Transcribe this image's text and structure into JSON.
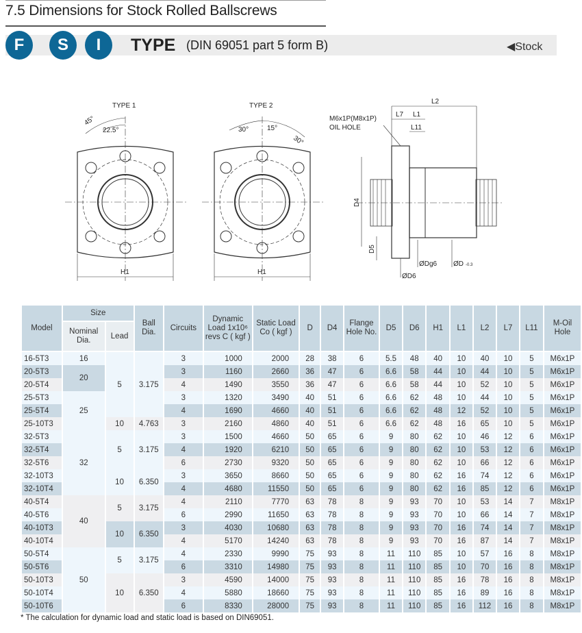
{
  "header": {
    "title": "7.5 Dimensions for Stock Rolled Ballscrews",
    "badges": [
      "F",
      "S",
      "I"
    ],
    "type_label": "TYPE",
    "standard": "(DIN 69051 part 5 form B)",
    "stock_label": "Stock",
    "brand_color": "#0e6796"
  },
  "diagrams": {
    "type1": {
      "label": "TYPE 1",
      "angle_a": "45°",
      "angle_b": "22.5°",
      "h1": "H1"
    },
    "type2": {
      "label": "TYPE 2",
      "angle_a": "30°",
      "angle_b": "15°",
      "angle_c": "30°",
      "h1": "H1"
    },
    "side": {
      "l2": "L2",
      "l7": "L7",
      "l1": "L1",
      "l11": "L11",
      "oil_hole_1": "M6x1P(M8x1P)",
      "oil_hole_2": "OIL HOLE",
      "d4": "D4",
      "d5": "D5",
      "d6": "ØD6",
      "dg6": "ØDg6",
      "d": "ØD",
      "d_tol": "-0.3"
    }
  },
  "table": {
    "headers": {
      "model": "Model",
      "size": "Size",
      "nominal": "Nominal Dia.",
      "lead": "Lead",
      "ball": "Ball Dia.",
      "circuits": "Circuits",
      "dynamic": "Dynamic Load 1x10⁶ revs C ( kgf )",
      "static": "Static Load Co ( kgf )",
      "d": "D",
      "d4": "D4",
      "flange": "Flange Hole No.",
      "d5": "D5",
      "d6": "D6",
      "h1": "H1",
      "l1": "L1",
      "l2": "L2",
      "l7": "L7",
      "l11": "L11",
      "oil": "M-Oil Hole"
    },
    "nominal_groups": [
      {
        "value": "16",
        "rows": 1
      },
      {
        "value": "20",
        "rows": 2
      },
      {
        "value": "25",
        "rows": 3
      },
      {
        "value": "32",
        "rows": 5
      },
      {
        "value": "40",
        "rows": 4
      },
      {
        "value": "50",
        "rows": 5
      }
    ],
    "lead_groups": [
      {
        "lead": "5",
        "ball": "3.175",
        "rows": 5
      },
      {
        "lead": "10",
        "ball": "4.763",
        "rows": 1
      },
      {
        "lead": "5",
        "ball": "3.175",
        "rows": 3
      },
      {
        "lead": "10",
        "ball": "6.350",
        "rows": 2
      },
      {
        "lead": "5",
        "ball": "3.175",
        "rows": 2
      },
      {
        "lead": "10",
        "ball": "6.350",
        "rows": 2
      },
      {
        "lead": "5",
        "ball": "3.175",
        "rows": 2
      },
      {
        "lead": "10",
        "ball": "6.350",
        "rows": 3
      }
    ],
    "rows": [
      [
        "16-5T3",
        "3",
        "1000",
        "2000",
        "28",
        "38",
        "6",
        "5.5",
        "48",
        "40",
        "10",
        "40",
        "10",
        "5",
        "M6x1P"
      ],
      [
        "20-5T3",
        "3",
        "1160",
        "2660",
        "36",
        "47",
        "6",
        "6.6",
        "58",
        "44",
        "10",
        "44",
        "10",
        "5",
        "M6x1P"
      ],
      [
        "20-5T4",
        "4",
        "1490",
        "3550",
        "36",
        "47",
        "6",
        "6.6",
        "58",
        "44",
        "10",
        "52",
        "10",
        "5",
        "M6x1P"
      ],
      [
        "25-5T3",
        "3",
        "1320",
        "3490",
        "40",
        "51",
        "6",
        "6.6",
        "62",
        "48",
        "10",
        "44",
        "10",
        "5",
        "M6x1P"
      ],
      [
        "25-5T4",
        "4",
        "1690",
        "4660",
        "40",
        "51",
        "6",
        "6.6",
        "62",
        "48",
        "12",
        "52",
        "10",
        "5",
        "M6x1P"
      ],
      [
        "25-10T3",
        "3",
        "2160",
        "4860",
        "40",
        "51",
        "6",
        "6.6",
        "62",
        "48",
        "16",
        "65",
        "10",
        "5",
        "M6x1P"
      ],
      [
        "32-5T3",
        "3",
        "1500",
        "4660",
        "50",
        "65",
        "6",
        "9",
        "80",
        "62",
        "10",
        "46",
        "12",
        "6",
        "M6x1P"
      ],
      [
        "32-5T4",
        "4",
        "1920",
        "6210",
        "50",
        "65",
        "6",
        "9",
        "80",
        "62",
        "10",
        "53",
        "12",
        "6",
        "M6x1P"
      ],
      [
        "32-5T6",
        "6",
        "2730",
        "9320",
        "50",
        "65",
        "6",
        "9",
        "80",
        "62",
        "10",
        "66",
        "12",
        "6",
        "M6x1P"
      ],
      [
        "32-10T3",
        "3",
        "3650",
        "8660",
        "50",
        "65",
        "6",
        "9",
        "80",
        "62",
        "16",
        "74",
        "12",
        "6",
        "M6x1P"
      ],
      [
        "32-10T4",
        "4",
        "4680",
        "11550",
        "50",
        "65",
        "6",
        "9",
        "80",
        "62",
        "16",
        "85",
        "12",
        "6",
        "M6x1P"
      ],
      [
        "40-5T4",
        "4",
        "2110",
        "7770",
        "63",
        "78",
        "8",
        "9",
        "93",
        "70",
        "10",
        "53",
        "14",
        "7",
        "M8x1P"
      ],
      [
        "40-5T6",
        "6",
        "2990",
        "11650",
        "63",
        "78",
        "8",
        "9",
        "93",
        "70",
        "10",
        "66",
        "14",
        "7",
        "M8x1P"
      ],
      [
        "40-10T3",
        "3",
        "4030",
        "10680",
        "63",
        "78",
        "8",
        "9",
        "93",
        "70",
        "16",
        "74",
        "14",
        "7",
        "M8x1P"
      ],
      [
        "40-10T4",
        "4",
        "5170",
        "14240",
        "63",
        "78",
        "8",
        "9",
        "93",
        "70",
        "16",
        "87",
        "14",
        "7",
        "M8x1P"
      ],
      [
        "50-5T4",
        "4",
        "2330",
        "9990",
        "75",
        "93",
        "8",
        "11",
        "110",
        "85",
        "10",
        "57",
        "16",
        "8",
        "M8x1P"
      ],
      [
        "50-5T6",
        "6",
        "3310",
        "14980",
        "75",
        "93",
        "8",
        "11",
        "110",
        "85",
        "10",
        "70",
        "16",
        "8",
        "M8x1P"
      ],
      [
        "50-10T3",
        "3",
        "4590",
        "14000",
        "75",
        "93",
        "8",
        "11",
        "110",
        "85",
        "16",
        "78",
        "16",
        "8",
        "M8x1P"
      ],
      [
        "50-10T4",
        "4",
        "5880",
        "18660",
        "75",
        "93",
        "8",
        "11",
        "110",
        "85",
        "16",
        "89",
        "16",
        "8",
        "M8x1P"
      ],
      [
        "50-10T6",
        "6",
        "8330",
        "28000",
        "75",
        "93",
        "8",
        "11",
        "110",
        "85",
        "16",
        "112",
        "16",
        "8",
        "M8x1P"
      ]
    ]
  },
  "footnote": "* The calculation for dynamic load and static load is based on DIN69051."
}
